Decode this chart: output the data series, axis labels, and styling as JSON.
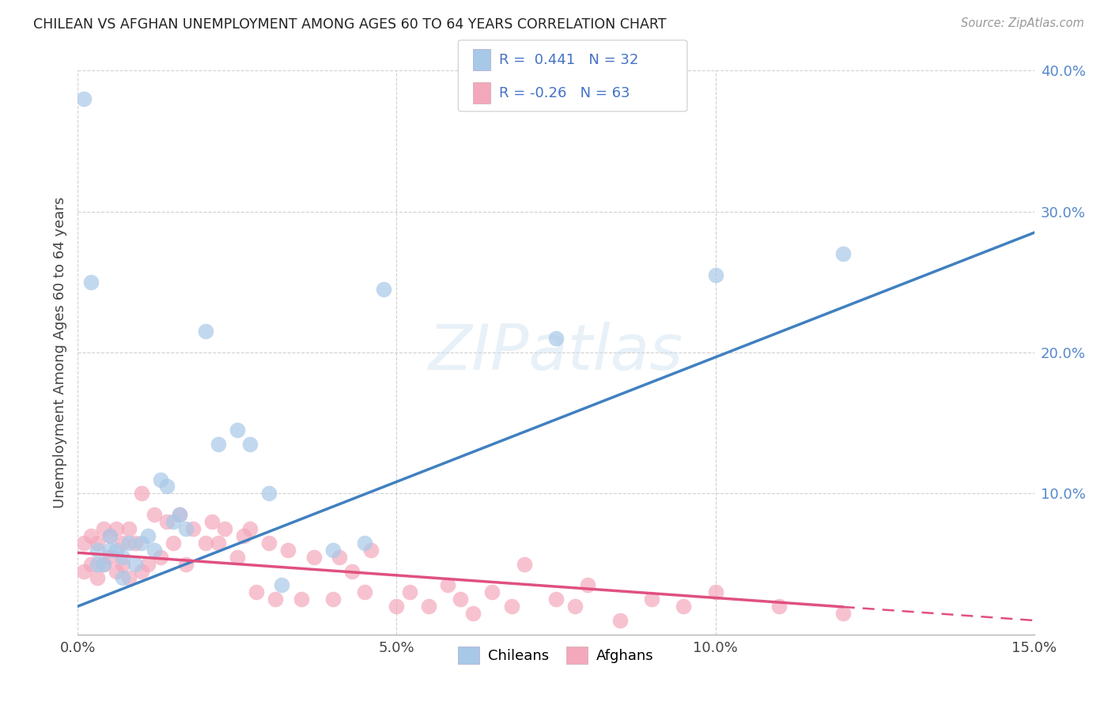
{
  "title": "CHILEAN VS AFGHAN UNEMPLOYMENT AMONG AGES 60 TO 64 YEARS CORRELATION CHART",
  "source": "Source: ZipAtlas.com",
  "ylabel": "Unemployment Among Ages 60 to 64 years",
  "xlim": [
    0.0,
    0.15
  ],
  "ylim": [
    0.0,
    0.4
  ],
  "xticks": [
    0.0,
    0.05,
    0.1,
    0.15
  ],
  "xticklabels": [
    "0.0%",
    "5.0%",
    "10.0%",
    "15.0%"
  ],
  "yticks": [
    0.0,
    0.1,
    0.2,
    0.3,
    0.4
  ],
  "yticklabels": [
    "",
    "10.0%",
    "20.0%",
    "30.0%",
    "40.0%"
  ],
  "r_chilean": 0.441,
  "n_chilean": 32,
  "r_afghan": -0.26,
  "n_afghan": 63,
  "blue_color": "#a8c8e8",
  "pink_color": "#f4a8bc",
  "blue_line_color": "#4080c0",
  "pink_line_color": "#e05080",
  "background_color": "#ffffff",
  "chilean_x": [
    0.001,
    0.002,
    0.003,
    0.003,
    0.004,
    0.005,
    0.005,
    0.006,
    0.007,
    0.007,
    0.008,
    0.009,
    0.01,
    0.011,
    0.012,
    0.013,
    0.014,
    0.015,
    0.016,
    0.017,
    0.02,
    0.022,
    0.025,
    0.027,
    0.03,
    0.032,
    0.04,
    0.045,
    0.048,
    0.075,
    0.1,
    0.12
  ],
  "chilean_y": [
    0.38,
    0.25,
    0.06,
    0.05,
    0.05,
    0.06,
    0.07,
    0.06,
    0.04,
    0.055,
    0.065,
    0.05,
    0.065,
    0.07,
    0.06,
    0.11,
    0.105,
    0.08,
    0.085,
    0.075,
    0.215,
    0.135,
    0.145,
    0.135,
    0.1,
    0.035,
    0.06,
    0.065,
    0.245,
    0.21,
    0.255,
    0.27
  ],
  "afghan_x": [
    0.001,
    0.001,
    0.002,
    0.002,
    0.003,
    0.003,
    0.004,
    0.004,
    0.005,
    0.005,
    0.006,
    0.006,
    0.007,
    0.007,
    0.008,
    0.008,
    0.009,
    0.01,
    0.01,
    0.011,
    0.012,
    0.013,
    0.014,
    0.015,
    0.016,
    0.017,
    0.018,
    0.02,
    0.021,
    0.022,
    0.023,
    0.025,
    0.026,
    0.027,
    0.028,
    0.03,
    0.031,
    0.033,
    0.035,
    0.037,
    0.04,
    0.041,
    0.043,
    0.045,
    0.046,
    0.05,
    0.052,
    0.055,
    0.058,
    0.06,
    0.062,
    0.065,
    0.068,
    0.07,
    0.075,
    0.078,
    0.08,
    0.085,
    0.09,
    0.095,
    0.1,
    0.11,
    0.12
  ],
  "afghan_y": [
    0.065,
    0.045,
    0.07,
    0.05,
    0.065,
    0.04,
    0.075,
    0.05,
    0.07,
    0.055,
    0.075,
    0.045,
    0.065,
    0.05,
    0.075,
    0.04,
    0.065,
    0.1,
    0.045,
    0.05,
    0.085,
    0.055,
    0.08,
    0.065,
    0.085,
    0.05,
    0.075,
    0.065,
    0.08,
    0.065,
    0.075,
    0.055,
    0.07,
    0.075,
    0.03,
    0.065,
    0.025,
    0.06,
    0.025,
    0.055,
    0.025,
    0.055,
    0.045,
    0.03,
    0.06,
    0.02,
    0.03,
    0.02,
    0.035,
    0.025,
    0.015,
    0.03,
    0.02,
    0.05,
    0.025,
    0.02,
    0.035,
    0.01,
    0.025,
    0.02,
    0.03,
    0.02,
    0.015
  ],
  "blue_line_x0": 0.0,
  "blue_line_y0": 0.02,
  "blue_line_x1": 0.15,
  "blue_line_y1": 0.285,
  "pink_line_x0": 0.0,
  "pink_line_y0": 0.058,
  "pink_line_x1": 0.15,
  "pink_line_y1": 0.01
}
